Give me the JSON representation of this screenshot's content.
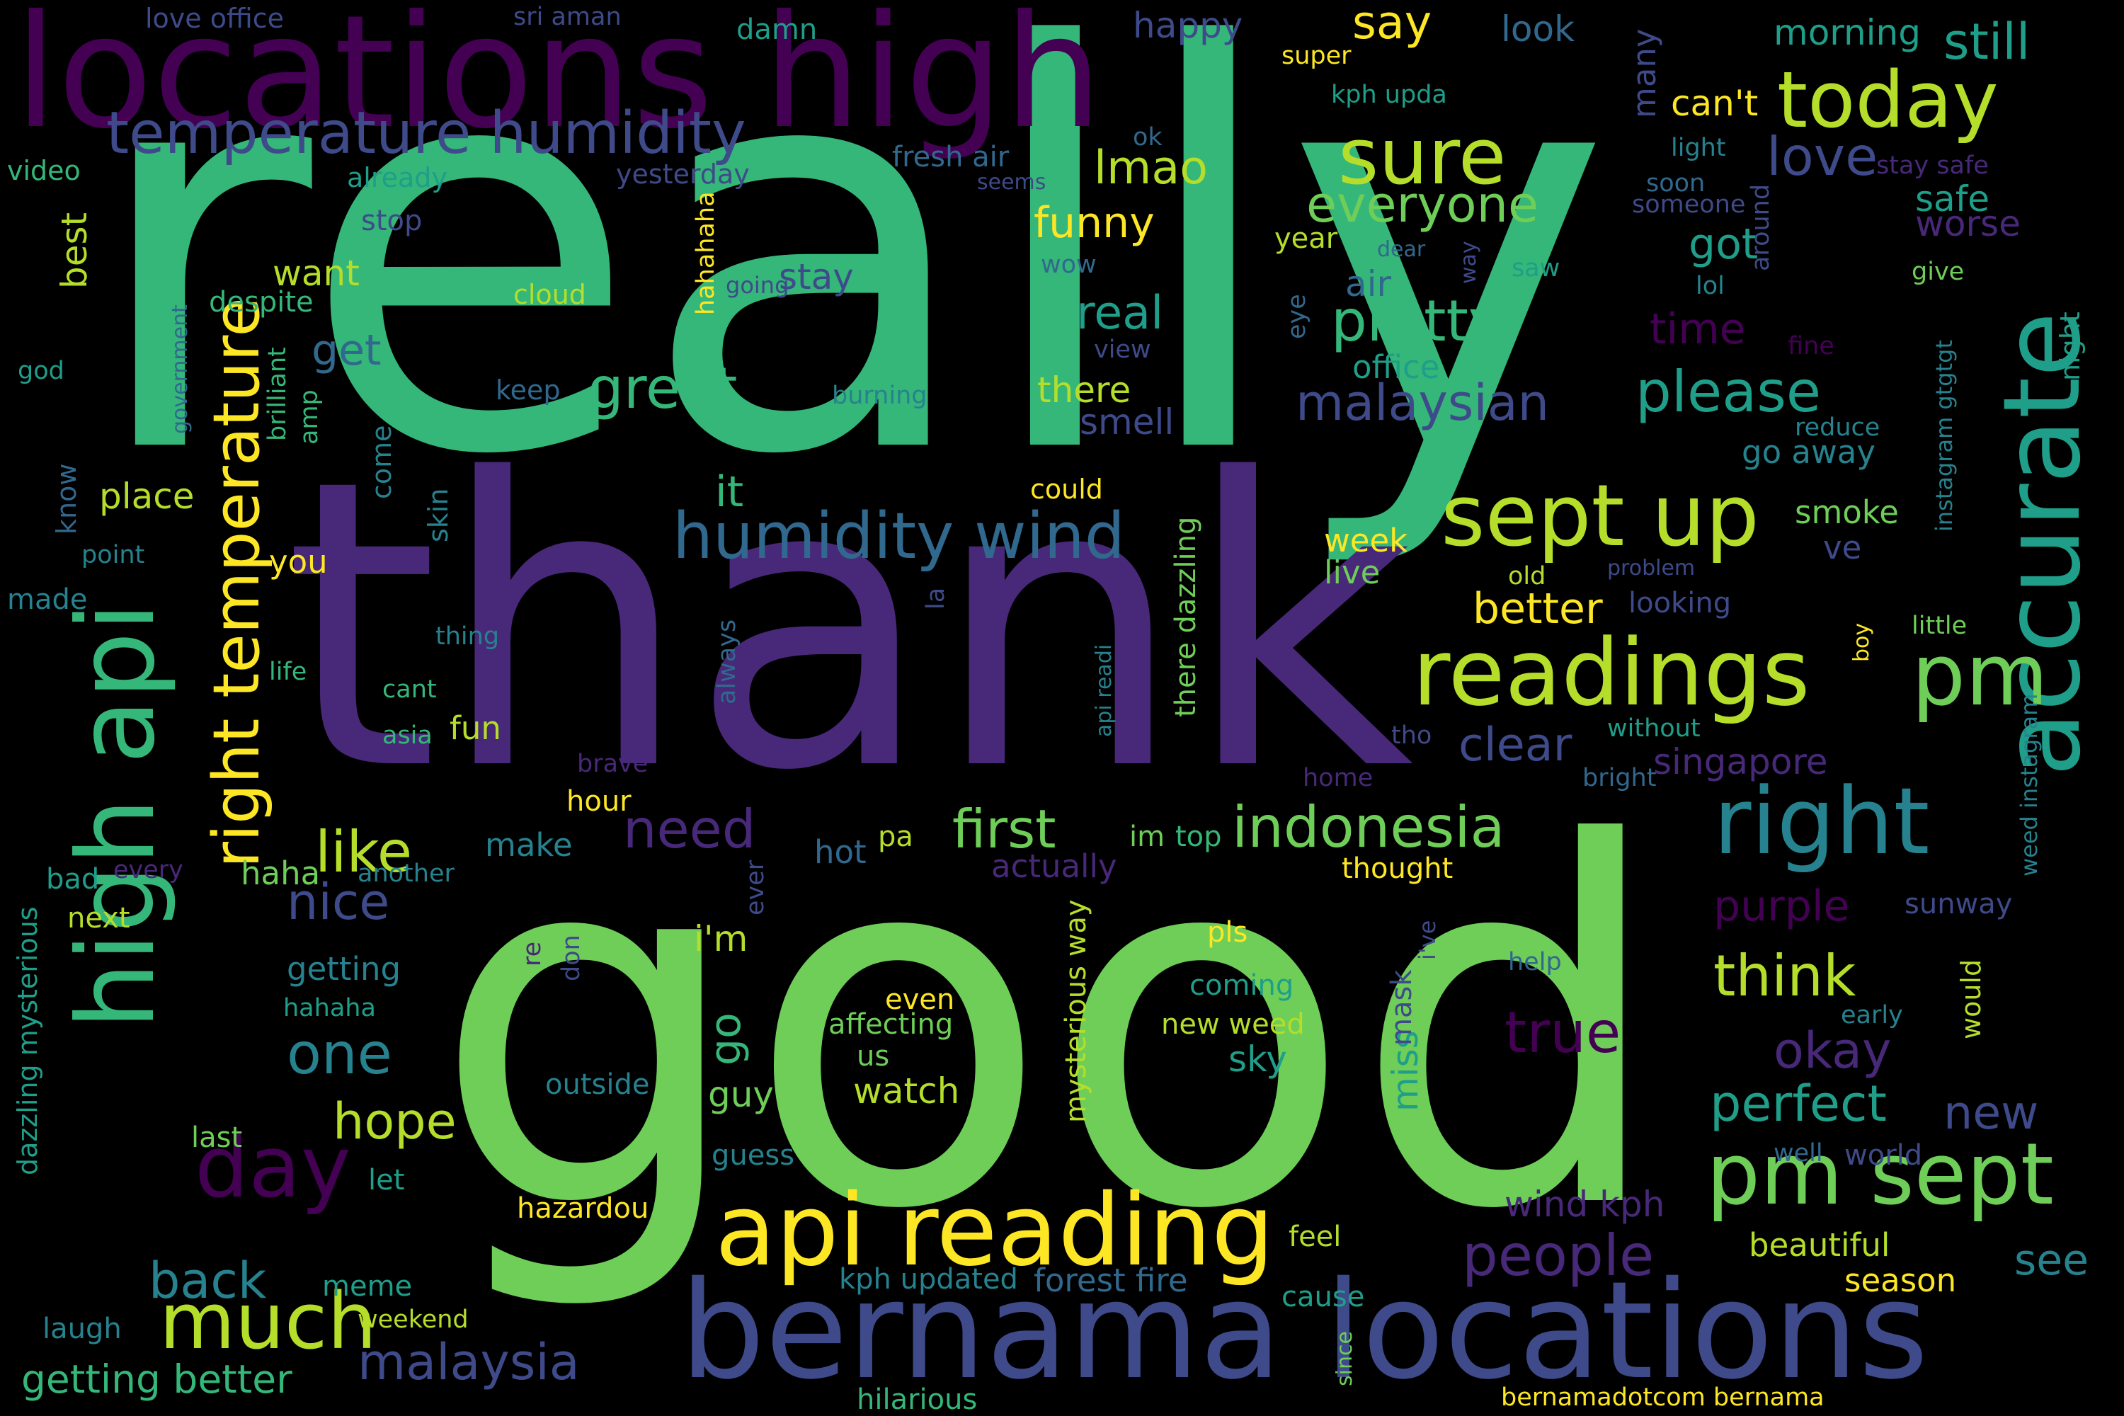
{
  "palette": {
    "background": "#000000",
    "viridis": [
      "#440154",
      "#482878",
      "#3e4a89",
      "#31688e",
      "#26828e",
      "#1f9e89",
      "#35b779",
      "#6ece58",
      "#b5de2b",
      "#fde725"
    ]
  },
  "words": [
    {
      "text": "really",
      "color": "#35b779"
    },
    {
      "text": "thank",
      "color": "#482878"
    },
    {
      "text": "good",
      "color": "#6ece58"
    },
    {
      "text": "locations high",
      "color": "#440154"
    },
    {
      "text": "bernama locations",
      "color": "#3e4a89"
    },
    {
      "text": "api reading",
      "color": "#fde725"
    },
    {
      "text": "accurate",
      "color": "#1f9e89"
    },
    {
      "text": "high api",
      "color": "#35b779"
    },
    {
      "text": "readings",
      "color": "#b5de2b"
    },
    {
      "text": "pm sept",
      "color": "#6ece58"
    },
    {
      "text": "sept up",
      "color": "#b5de2b"
    },
    {
      "text": "right",
      "color": "#26828e"
    },
    {
      "text": "pm",
      "color": "#6ece58"
    },
    {
      "text": "temperature humidity",
      "color": "#3e4a89"
    },
    {
      "text": "today",
      "color": "#b5de2b"
    },
    {
      "text": "sure",
      "color": "#b5de2b"
    },
    {
      "text": "humidity wind",
      "color": "#31688e"
    },
    {
      "text": "right temperature",
      "color": "#fde725"
    },
    {
      "text": "much",
      "color": "#b5de2b"
    },
    {
      "text": "day",
      "color": "#440154"
    },
    {
      "text": "indonesia",
      "color": "#6ece58"
    },
    {
      "text": "malaysian",
      "color": "#3e4a89"
    },
    {
      "text": "pretty",
      "color": "#35b779"
    },
    {
      "text": "everyone",
      "color": "#6ece58"
    },
    {
      "text": "please",
      "color": "#1f9e89"
    },
    {
      "text": "great",
      "color": "#35b779"
    },
    {
      "text": "true",
      "color": "#440154"
    },
    {
      "text": "think",
      "color": "#b5de2b"
    },
    {
      "text": "okay",
      "color": "#482878"
    },
    {
      "text": "perfect",
      "color": "#1f9e89"
    },
    {
      "text": "people",
      "color": "#482878"
    },
    {
      "text": "malaysia",
      "color": "#3e4a89"
    },
    {
      "text": "first",
      "color": "#6ece58"
    },
    {
      "text": "need",
      "color": "#482878"
    },
    {
      "text": "like",
      "color": "#b5de2b"
    },
    {
      "text": "nice",
      "color": "#3e4a89"
    },
    {
      "text": "one",
      "color": "#26828e"
    },
    {
      "text": "hope",
      "color": "#b5de2b"
    },
    {
      "text": "back",
      "color": "#26828e"
    },
    {
      "text": "getting better",
      "color": "#35b779"
    },
    {
      "text": "clear",
      "color": "#3e4a89"
    },
    {
      "text": "love",
      "color": "#3e4a89"
    },
    {
      "text": "still",
      "color": "#1f9e89"
    },
    {
      "text": "say",
      "color": "#fde725"
    },
    {
      "text": "morning",
      "color": "#1f9e89"
    },
    {
      "text": "look",
      "color": "#31688e"
    },
    {
      "text": "happy",
      "color": "#3e4a89"
    },
    {
      "text": "lmao",
      "color": "#b5de2b"
    },
    {
      "text": "funny",
      "color": "#fde725"
    },
    {
      "text": "real",
      "color": "#1f9e89"
    },
    {
      "text": "best",
      "color": "#b5de2b"
    },
    {
      "text": "get",
      "color": "#31688e"
    },
    {
      "text": "got",
      "color": "#1f9e89"
    },
    {
      "text": "time",
      "color": "#440154"
    },
    {
      "text": "air",
      "color": "#31688e"
    },
    {
      "text": "safe",
      "color": "#1f9e89"
    },
    {
      "text": "worse",
      "color": "#482878"
    },
    {
      "text": "can't",
      "color": "#fde725"
    },
    {
      "text": "many",
      "color": "#3e4a89"
    },
    {
      "text": "stay",
      "color": "#3e4a89"
    },
    {
      "text": "want",
      "color": "#b5de2b"
    },
    {
      "text": "smell",
      "color": "#3e4a89"
    },
    {
      "text": "there",
      "color": "#b5de2b"
    },
    {
      "text": "office",
      "color": "#1f9e89"
    },
    {
      "text": "go away",
      "color": "#26828e"
    },
    {
      "text": "smoke",
      "color": "#6ece58"
    },
    {
      "text": "ve",
      "color": "#3e4a89"
    },
    {
      "text": "week",
      "color": "#fde725"
    },
    {
      "text": "live",
      "color": "#6ece58"
    },
    {
      "text": "better",
      "color": "#fde725"
    },
    {
      "text": "it",
      "color": "#35b779"
    },
    {
      "text": "go",
      "color": "#35b779"
    },
    {
      "text": "i'm",
      "color": "#b5de2b"
    },
    {
      "text": "miss",
      "color": "#1f9e89"
    },
    {
      "text": "mask",
      "color": "#3e4a89"
    },
    {
      "text": "new",
      "color": "#3e4a89"
    },
    {
      "text": "see",
      "color": "#26828e"
    },
    {
      "text": "singapore",
      "color": "#482878"
    },
    {
      "text": "purple",
      "color": "#440154"
    },
    {
      "text": "sunway",
      "color": "#3e4a89"
    },
    {
      "text": "wind kph",
      "color": "#482878"
    },
    {
      "text": "beautiful",
      "color": "#b5de2b"
    },
    {
      "text": "season",
      "color": "#fde725"
    },
    {
      "text": "world",
      "color": "#3e4a89"
    },
    {
      "text": "well",
      "color": "#31688e"
    },
    {
      "text": "forest fire",
      "color": "#31688e"
    },
    {
      "text": "kph updated",
      "color": "#26828e"
    },
    {
      "text": "cause",
      "color": "#1f9e89"
    },
    {
      "text": "feel",
      "color": "#b5de2b"
    },
    {
      "text": "guess",
      "color": "#26828e"
    },
    {
      "text": "guy",
      "color": "#6ece58"
    },
    {
      "text": "sky",
      "color": "#1f9e89"
    },
    {
      "text": "watch",
      "color": "#b5de2b"
    },
    {
      "text": "new weed",
      "color": "#b5de2b"
    },
    {
      "text": "coming",
      "color": "#1f9e89"
    },
    {
      "text": "pls",
      "color": "#fde725"
    },
    {
      "text": "even",
      "color": "#fde725"
    },
    {
      "text": "affecting",
      "color": "#6ece58"
    },
    {
      "text": "us",
      "color": "#6ece58"
    },
    {
      "text": "outside",
      "color": "#26828e"
    },
    {
      "text": "hot",
      "color": "#31688e"
    },
    {
      "text": "pa",
      "color": "#b5de2b"
    },
    {
      "text": "im",
      "color": "#6ece58"
    },
    {
      "text": "top",
      "color": "#35b779"
    },
    {
      "text": "actually",
      "color": "#482878"
    },
    {
      "text": "thought",
      "color": "#fde725"
    },
    {
      "text": "mysterious way",
      "color": "#b5de2b"
    },
    {
      "text": "there dazzling",
      "color": "#6ece58"
    },
    {
      "text": "api readi",
      "color": "#26828e"
    },
    {
      "text": "make",
      "color": "#26828e"
    },
    {
      "text": "haha",
      "color": "#6ece58"
    },
    {
      "text": "next",
      "color": "#b5de2b"
    },
    {
      "text": "bad",
      "color": "#1f9e89"
    },
    {
      "text": "every",
      "color": "#482878"
    },
    {
      "text": "another",
      "color": "#26828e"
    },
    {
      "text": "getting",
      "color": "#26828e"
    },
    {
      "text": "hahaha",
      "color": "#1f9e89"
    },
    {
      "text": "last",
      "color": "#6ece58"
    },
    {
      "text": "let",
      "color": "#1f9e89"
    },
    {
      "text": "meme",
      "color": "#1f9e89"
    },
    {
      "text": "weekend",
      "color": "#b5de2b"
    },
    {
      "text": "laugh",
      "color": "#26828e"
    },
    {
      "text": "dazzling mysterious",
      "color": "#1f9e89"
    },
    {
      "text": "hazardou",
      "color": "#fde725"
    },
    {
      "text": "hilarious",
      "color": "#35b779"
    },
    {
      "text": "since",
      "color": "#6ece58"
    },
    {
      "text": "bernamadotcom bernama",
      "color": "#fde725"
    },
    {
      "text": "hour",
      "color": "#fde725"
    },
    {
      "text": "brave",
      "color": "#482878"
    },
    {
      "text": "fun",
      "color": "#b5de2b"
    },
    {
      "text": "asia",
      "color": "#35b779"
    },
    {
      "text": "cant",
      "color": "#35b779"
    },
    {
      "text": "life",
      "color": "#35b779"
    },
    {
      "text": "thing",
      "color": "#26828e"
    },
    {
      "text": "you",
      "color": "#fde725"
    },
    {
      "text": "point",
      "color": "#26828e"
    },
    {
      "text": "made",
      "color": "#26828e"
    },
    {
      "text": "know",
      "color": "#31688e"
    },
    {
      "text": "place",
      "color": "#b5de2b"
    },
    {
      "text": "skin",
      "color": "#26828e"
    },
    {
      "text": "come",
      "color": "#26828e"
    },
    {
      "text": "amp",
      "color": "#35b779"
    },
    {
      "text": "brilliant",
      "color": "#35b779"
    },
    {
      "text": "government",
      "color": "#31688e"
    },
    {
      "text": "god",
      "color": "#1f9e89"
    },
    {
      "text": "despite",
      "color": "#35b779"
    },
    {
      "text": "video",
      "color": "#35b779"
    },
    {
      "text": "already",
      "color": "#1f9e89"
    },
    {
      "text": "stop",
      "color": "#3e4a89"
    },
    {
      "text": "love office",
      "color": "#3e4a89"
    },
    {
      "text": "sri aman",
      "color": "#3e4a89"
    },
    {
      "text": "damn",
      "color": "#1f9e89"
    },
    {
      "text": "super",
      "color": "#fde725"
    },
    {
      "text": "kph upda",
      "color": "#1f9e89"
    },
    {
      "text": "ok",
      "color": "#31688e"
    },
    {
      "text": "fresh air",
      "color": "#31688e"
    },
    {
      "text": "seems",
      "color": "#3e4a89"
    },
    {
      "text": "yesterday",
      "color": "#3e4a89"
    },
    {
      "text": "light",
      "color": "#26828e"
    },
    {
      "text": "stay safe",
      "color": "#482878"
    },
    {
      "text": "soon",
      "color": "#31688e"
    },
    {
      "text": "someone",
      "color": "#3e4a89"
    },
    {
      "text": "around",
      "color": "#3e4a89"
    },
    {
      "text": "lol",
      "color": "#26828e"
    },
    {
      "text": "give",
      "color": "#6ece58"
    },
    {
      "text": "year",
      "color": "#b5de2b"
    },
    {
      "text": "dear",
      "color": "#31688e"
    },
    {
      "text": "way",
      "color": "#3e4a89"
    },
    {
      "text": "saw",
      "color": "#1f9e89"
    },
    {
      "text": "eye",
      "color": "#31688e"
    },
    {
      "text": "wow",
      "color": "#31688e"
    },
    {
      "text": "going",
      "color": "#3e4a89"
    },
    {
      "text": "cloud",
      "color": "#b5de2b"
    },
    {
      "text": "hahahaha",
      "color": "#fde725"
    },
    {
      "text": "view",
      "color": "#3e4a89"
    },
    {
      "text": "keep",
      "color": "#31688e"
    },
    {
      "text": "burning",
      "color": "#26828e"
    },
    {
      "text": "could",
      "color": "#fde725"
    },
    {
      "text": "fine",
      "color": "#440154"
    },
    {
      "text": "night",
      "color": "#1f9e89"
    },
    {
      "text": "reduce",
      "color": "#26828e"
    },
    {
      "text": "instagram gtgtgt",
      "color": "#26828e"
    },
    {
      "text": "weed instagram",
      "color": "#26828e"
    },
    {
      "text": "problem",
      "color": "#3e4a89"
    },
    {
      "text": "looking",
      "color": "#3e4a89"
    },
    {
      "text": "old",
      "color": "#b5de2b"
    },
    {
      "text": "little",
      "color": "#6ece58"
    },
    {
      "text": "boy",
      "color": "#fde725"
    },
    {
      "text": "tho",
      "color": "#3e4a89"
    },
    {
      "text": "without",
      "color": "#1f9e89"
    },
    {
      "text": "bright",
      "color": "#31688e"
    },
    {
      "text": "home",
      "color": "#482878"
    },
    {
      "text": "la",
      "color": "#3e4a89"
    },
    {
      "text": "always",
      "color": "#31688e"
    },
    {
      "text": "ever",
      "color": "#3e4a89"
    },
    {
      "text": "re",
      "color": "#482878"
    },
    {
      "text": "don",
      "color": "#3e4a89"
    },
    {
      "text": "i've",
      "color": "#3e4a89"
    },
    {
      "text": "help",
      "color": "#31688e"
    },
    {
      "text": "early",
      "color": "#26828e"
    },
    {
      "text": "would",
      "color": "#b5de2b"
    }
  ]
}
